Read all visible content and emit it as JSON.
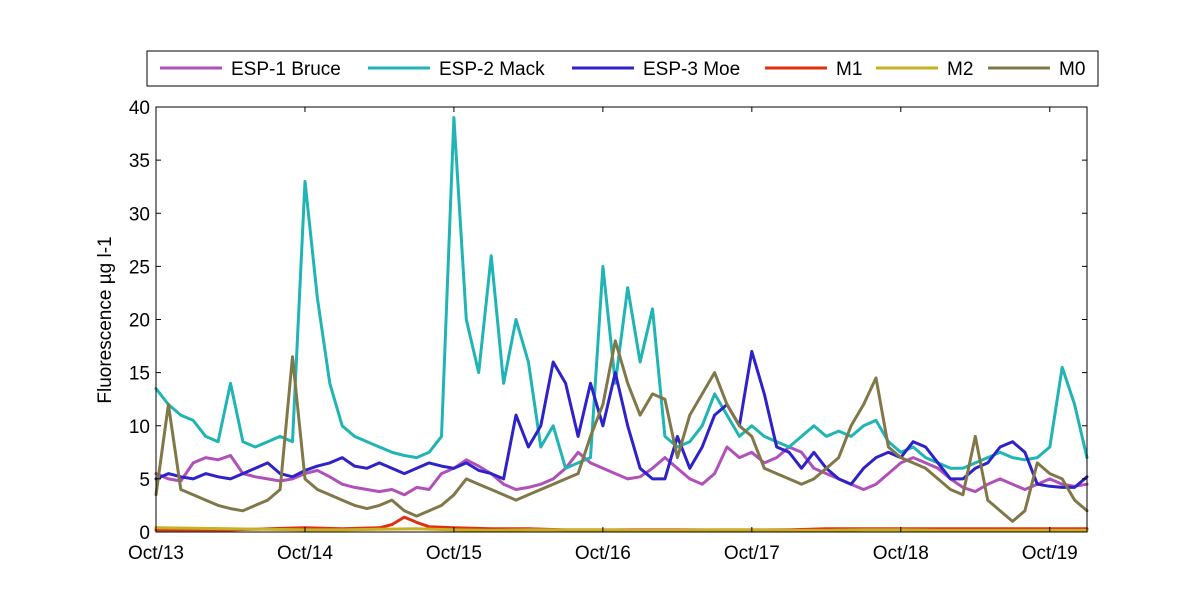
{
  "chart_data": {
    "type": "line",
    "title": "",
    "xlabel": "",
    "ylabel": "Fluorescence µg l-1",
    "xlim": [
      "2013-10",
      "2020-01"
    ],
    "ylim": [
      0,
      40
    ],
    "yticks": [
      0,
      5,
      10,
      15,
      20,
      25,
      30,
      35,
      40
    ],
    "xticks": [
      {
        "label": "Oct/13",
        "x": "2013-10"
      },
      {
        "label": "Oct/14",
        "x": "2014-10"
      },
      {
        "label": "Oct/15",
        "x": "2015-10"
      },
      {
        "label": "Oct/16",
        "x": "2016-10"
      },
      {
        "label": "Oct/17",
        "x": "2017-10"
      },
      {
        "label": "Oct/18",
        "x": "2018-10"
      },
      {
        "label": "Oct/19",
        "x": "2019-10"
      }
    ],
    "grid": false,
    "legend": {
      "placement": "top",
      "orientation": "horizontal"
    },
    "series": [
      {
        "name": "ESP-1 Bruce",
        "color": "#b050b8",
        "x": [
          "2013-10",
          "2013-11",
          "2013-12",
          "2014-01",
          "2014-02",
          "2014-03",
          "2014-04",
          "2014-05",
          "2014-06",
          "2014-07",
          "2014-08",
          "2014-09",
          "2014-10",
          "2014-11",
          "2014-12",
          "2015-01",
          "2015-02",
          "2015-03",
          "2015-04",
          "2015-05",
          "2015-06",
          "2015-07",
          "2015-08",
          "2015-09",
          "2015-10",
          "2015-11",
          "2015-12",
          "2016-01",
          "2016-02",
          "2016-03",
          "2016-04",
          "2016-05",
          "2016-06",
          "2016-07",
          "2016-08",
          "2016-09",
          "2016-10",
          "2016-11",
          "2016-12",
          "2017-01",
          "2017-02",
          "2017-03",
          "2017-04",
          "2017-05",
          "2017-06",
          "2017-07",
          "2017-08",
          "2017-09",
          "2017-10",
          "2017-11",
          "2017-12",
          "2018-01",
          "2018-02",
          "2018-03",
          "2018-04",
          "2018-05",
          "2018-06",
          "2018-07",
          "2018-08",
          "2018-09",
          "2018-10",
          "2018-11",
          "2018-12",
          "2019-01",
          "2019-02",
          "2019-03",
          "2019-04",
          "2019-05",
          "2019-06",
          "2019-07",
          "2019-08",
          "2019-09",
          "2019-10",
          "2019-11",
          "2019-12",
          "2020-01"
        ],
        "y": [
          5.5,
          5.0,
          4.8,
          6.5,
          7.0,
          6.8,
          7.2,
          5.5,
          5.2,
          5.0,
          4.8,
          5.0,
          5.5,
          5.8,
          5.2,
          4.5,
          4.2,
          4.0,
          3.8,
          4.0,
          3.5,
          4.2,
          4.0,
          5.5,
          6.0,
          6.8,
          6.2,
          5.5,
          4.5,
          4.0,
          4.2,
          4.5,
          5.0,
          6.0,
          7.5,
          6.5,
          6.0,
          5.5,
          5.0,
          5.2,
          6.0,
          7.0,
          6.0,
          5.0,
          4.5,
          5.5,
          8.0,
          7.0,
          7.5,
          6.5,
          7.0,
          8.0,
          7.5,
          6.0,
          5.5,
          5.0,
          4.5,
          4.0,
          4.5,
          5.5,
          6.5,
          7.0,
          6.5,
          6.0,
          5.0,
          4.2,
          3.8,
          4.5,
          5.0,
          4.5,
          4.0,
          4.5,
          5.0,
          4.5,
          4.3,
          4.5
        ]
      },
      {
        "name": "ESP-2 Mack",
        "color": "#20b4b4",
        "x": [
          "2013-10",
          "2013-11",
          "2013-12",
          "2014-01",
          "2014-02",
          "2014-03",
          "2014-04",
          "2014-05",
          "2014-06",
          "2014-07",
          "2014-08",
          "2014-09",
          "2014-10",
          "2014-11",
          "2014-12",
          "2015-01",
          "2015-02",
          "2015-03",
          "2015-04",
          "2015-05",
          "2015-06",
          "2015-07",
          "2015-08",
          "2015-09",
          "2015-10",
          "2015-11",
          "2015-12",
          "2016-01",
          "2016-02",
          "2016-03",
          "2016-04",
          "2016-05",
          "2016-06",
          "2016-07",
          "2016-08",
          "2016-09",
          "2016-10",
          "2016-11",
          "2016-12",
          "2017-01",
          "2017-02",
          "2017-03",
          "2017-04",
          "2017-05",
          "2017-06",
          "2017-07",
          "2017-08",
          "2017-09",
          "2017-10",
          "2017-11",
          "2017-12",
          "2018-01",
          "2018-02",
          "2018-03",
          "2018-04",
          "2018-05",
          "2018-06",
          "2018-07",
          "2018-08",
          "2018-09",
          "2018-10",
          "2018-11",
          "2018-12",
          "2019-01",
          "2019-02",
          "2019-03",
          "2019-04",
          "2019-05",
          "2019-06",
          "2019-07",
          "2019-08",
          "2019-09",
          "2019-10",
          "2019-11",
          "2019-12",
          "2020-01"
        ],
        "y": [
          13.5,
          12.0,
          11.0,
          10.5,
          9.0,
          8.5,
          14.0,
          8.5,
          8.0,
          8.5,
          9.0,
          8.5,
          33.0,
          22.0,
          14.0,
          10.0,
          9.0,
          8.5,
          8.0,
          7.5,
          7.2,
          7.0,
          7.5,
          9.0,
          39.0,
          20.0,
          15.0,
          26.0,
          14.0,
          20.0,
          16.0,
          8.0,
          10.0,
          6.0,
          6.5,
          7.0,
          25.0,
          14.0,
          23.0,
          16.0,
          21.0,
          9.0,
          8.0,
          8.5,
          10.0,
          13.0,
          11.0,
          9.0,
          10.0,
          9.0,
          8.5,
          8.0,
          9.0,
          10.0,
          9.0,
          9.5,
          9.0,
          10.0,
          10.5,
          8.5,
          7.5,
          8.0,
          7.0,
          6.5,
          6.0,
          6.0,
          6.5,
          7.0,
          7.5,
          7.0,
          6.8,
          7.0,
          8.0,
          15.5,
          12.0,
          7.0
        ]
      },
      {
        "name": "ESP-3 Moe",
        "color": "#2e22c8",
        "x": [
          "2013-10",
          "2013-11",
          "2013-12",
          "2014-01",
          "2014-02",
          "2014-03",
          "2014-04",
          "2014-05",
          "2014-06",
          "2014-07",
          "2014-08",
          "2014-09",
          "2014-10",
          "2014-11",
          "2014-12",
          "2015-01",
          "2015-02",
          "2015-03",
          "2015-04",
          "2015-05",
          "2015-06",
          "2015-07",
          "2015-08",
          "2015-09",
          "2015-10",
          "2015-11",
          "2015-12",
          "2016-01",
          "2016-02",
          "2016-03",
          "2016-04",
          "2016-05",
          "2016-06",
          "2016-07",
          "2016-08",
          "2016-09",
          "2016-10",
          "2016-11",
          "2016-12",
          "2017-01",
          "2017-02",
          "2017-03",
          "2017-04",
          "2017-05",
          "2017-06",
          "2017-07",
          "2017-08",
          "2017-09",
          "2017-10",
          "2017-11",
          "2017-12",
          "2018-01",
          "2018-02",
          "2018-03",
          "2018-04",
          "2018-05",
          "2018-06",
          "2018-07",
          "2018-08",
          "2018-09",
          "2018-10",
          "2018-11",
          "2018-12",
          "2019-01",
          "2019-02",
          "2019-03",
          "2019-04",
          "2019-05",
          "2019-06",
          "2019-07",
          "2019-08",
          "2019-09",
          "2019-10",
          "2019-11",
          "2019-12",
          "2020-01"
        ],
        "y": [
          5.0,
          5.5,
          5.2,
          5.0,
          5.5,
          5.2,
          5.0,
          5.5,
          6.0,
          6.5,
          5.5,
          5.2,
          5.8,
          6.2,
          6.5,
          7.0,
          6.2,
          6.0,
          6.5,
          6.0,
          5.5,
          6.0,
          6.5,
          6.2,
          6.0,
          6.5,
          5.8,
          5.5,
          5.0,
          11.0,
          8.0,
          10.0,
          16.0,
          14.0,
          9.0,
          14.0,
          10.0,
          15.0,
          10.0,
          6.0,
          5.0,
          5.0,
          9.0,
          6.0,
          8.0,
          11.0,
          12.0,
          10.0,
          17.0,
          13.0,
          8.0,
          7.5,
          6.0,
          7.5,
          6.0,
          5.0,
          4.5,
          6.0,
          7.0,
          7.5,
          7.0,
          8.5,
          8.0,
          6.5,
          5.0,
          5.0,
          6.0,
          6.5,
          8.0,
          8.5,
          7.5,
          4.5,
          4.3,
          4.2,
          4.2,
          5.2
        ]
      },
      {
        "name": "M1",
        "color": "#e03010",
        "x": [
          "2013-10",
          "2014-01",
          "2014-04",
          "2014-07",
          "2014-10",
          "2015-01",
          "2015-04",
          "2015-05",
          "2015-06",
          "2015-07",
          "2015-08",
          "2015-10",
          "2016-01",
          "2016-04",
          "2016-07",
          "2016-10",
          "2017-01",
          "2017-04",
          "2017-07",
          "2017-10",
          "2018-01",
          "2018-04",
          "2018-07",
          "2018-10",
          "2019-01",
          "2019-04",
          "2019-07",
          "2019-10",
          "2020-01"
        ],
        "y": [
          0.2,
          0.2,
          0.2,
          0.3,
          0.4,
          0.3,
          0.4,
          0.7,
          1.4,
          0.9,
          0.5,
          0.4,
          0.3,
          0.3,
          0.2,
          0.2,
          0.2,
          0.2,
          0.2,
          0.2,
          0.2,
          0.3,
          0.3,
          0.3,
          0.3,
          0.3,
          0.3,
          0.3,
          0.3
        ]
      },
      {
        "name": "M2",
        "color": "#c8b020",
        "x": [
          "2013-10",
          "2014-01",
          "2014-04",
          "2014-07",
          "2014-10",
          "2015-01",
          "2015-04",
          "2015-07",
          "2015-10",
          "2016-01",
          "2016-04",
          "2016-07",
          "2016-10",
          "2017-01",
          "2017-04",
          "2017-07",
          "2017-10",
          "2018-01",
          "2018-04",
          "2018-07",
          "2018-10",
          "2019-01",
          "2019-04",
          "2019-07",
          "2019-10",
          "2020-01"
        ],
        "y": [
          0.4,
          0.35,
          0.3,
          0.25,
          0.2,
          0.2,
          0.25,
          0.3,
          0.2,
          0.15,
          0.2,
          0.2,
          0.2,
          0.15,
          0.15,
          0.2,
          0.2,
          0.15,
          0.15,
          0.2,
          0.2,
          0.15,
          0.15,
          0.15,
          0.15,
          0.15
        ]
      },
      {
        "name": "M0",
        "color": "#807848",
        "x": [
          "2013-10",
          "2013-11",
          "2013-12",
          "2014-01",
          "2014-02",
          "2014-03",
          "2014-04",
          "2014-05",
          "2014-06",
          "2014-07",
          "2014-08",
          "2014-09",
          "2014-10",
          "2014-11",
          "2014-12",
          "2015-01",
          "2015-02",
          "2015-03",
          "2015-04",
          "2015-05",
          "2015-06",
          "2015-07",
          "2015-08",
          "2015-09",
          "2015-10",
          "2015-11",
          "2015-12",
          "2016-01",
          "2016-02",
          "2016-03",
          "2016-04",
          "2016-05",
          "2016-06",
          "2016-07",
          "2016-08",
          "2016-09",
          "2016-10",
          "2016-11",
          "2016-12",
          "2017-01",
          "2017-02",
          "2017-03",
          "2017-04",
          "2017-05",
          "2017-06",
          "2017-07",
          "2017-08",
          "2017-09",
          "2017-10",
          "2017-11",
          "2017-12",
          "2018-01",
          "2018-02",
          "2018-03",
          "2018-04",
          "2018-05",
          "2018-06",
          "2018-07",
          "2018-08",
          "2018-09",
          "2018-10",
          "2018-11",
          "2018-12",
          "2019-01",
          "2019-02",
          "2019-03",
          "2019-04",
          "2019-05",
          "2019-06",
          "2019-07",
          "2019-08",
          "2019-09",
          "2019-10",
          "2019-11",
          "2019-12",
          "2020-01"
        ],
        "y": [
          3.5,
          12.0,
          4.0,
          3.5,
          3.0,
          2.5,
          2.2,
          2.0,
          2.5,
          3.0,
          4.0,
          16.5,
          5.0,
          4.0,
          3.5,
          3.0,
          2.5,
          2.2,
          2.5,
          3.0,
          2.0,
          1.5,
          2.0,
          2.5,
          3.5,
          5.0,
          4.5,
          4.0,
          3.5,
          3.0,
          3.5,
          4.0,
          4.5,
          5.0,
          5.5,
          9.0,
          12.0,
          18.0,
          14.0,
          11.0,
          13.0,
          12.5,
          7.0,
          11.0,
          13.0,
          15.0,
          12.0,
          10.0,
          9.0,
          6.0,
          5.5,
          5.0,
          4.5,
          5.0,
          6.0,
          7.0,
          10.0,
          12.0,
          14.5,
          8.0,
          7.0,
          6.5,
          6.0,
          5.0,
          4.0,
          3.5,
          9.0,
          3.0,
          2.0,
          1.0,
          2.0,
          6.5,
          5.5,
          5.0,
          3.0,
          2.0
        ]
      }
    ]
  }
}
